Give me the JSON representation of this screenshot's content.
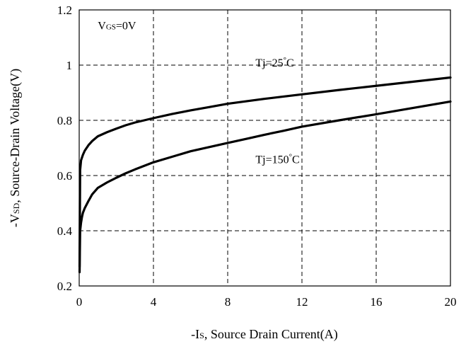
{
  "chart_data": {
    "type": "line",
    "title": "",
    "xlabel_parts": [
      "-I",
      "S",
      ", Source Drain Current(A)"
    ],
    "ylabel_parts": [
      "-V",
      "SD",
      ", Source-Drain Voltage(V)"
    ],
    "xlim": [
      0,
      20
    ],
    "ylim": [
      0.2,
      1.2
    ],
    "x_ticks": [
      0,
      4,
      8,
      12,
      16,
      20
    ],
    "y_ticks": [
      0.2,
      0.4,
      0.6,
      0.8,
      1,
      1.2
    ],
    "y_tick_labels": [
      "0.2",
      "0.4",
      "0.6",
      "0.8",
      "1",
      "1.2"
    ],
    "grid": true,
    "annotations": [
      {
        "id": "vgs",
        "parts": [
          "V",
          "GS",
          "=0V"
        ],
        "x": 1.0,
        "y": 1.13
      },
      {
        "id": "tj25",
        "parts": [
          "Tj=25",
          "°",
          "C"
        ],
        "x": 9.5,
        "y": 0.995
      },
      {
        "id": "tj150",
        "parts": [
          "Tj=150",
          "°",
          "C"
        ],
        "x": 9.5,
        "y": 0.645
      }
    ],
    "series": [
      {
        "label": "Tj=25°C",
        "x": [
          0.02,
          0.05,
          0.1,
          0.15,
          0.2,
          0.3,
          0.5,
          0.7,
          1,
          1.5,
          2,
          2.5,
          3,
          4,
          5,
          6,
          7,
          8,
          9,
          10,
          11,
          12,
          14,
          16,
          18,
          20
        ],
        "y": [
          0.27,
          0.62,
          0.655,
          0.665,
          0.675,
          0.69,
          0.71,
          0.725,
          0.742,
          0.757,
          0.77,
          0.782,
          0.792,
          0.808,
          0.823,
          0.836,
          0.848,
          0.86,
          0.869,
          0.878,
          0.886,
          0.894,
          0.91,
          0.925,
          0.94,
          0.955
        ]
      },
      {
        "label": "Tj=150°C",
        "x": [
          0.02,
          0.05,
          0.1,
          0.15,
          0.2,
          0.3,
          0.5,
          0.7,
          1,
          1.5,
          2,
          2.5,
          3,
          4,
          5,
          6,
          7,
          8,
          9,
          10,
          11,
          12,
          14,
          16,
          18,
          20
        ],
        "y": [
          0.25,
          0.4,
          0.43,
          0.45,
          0.465,
          0.482,
          0.508,
          0.532,
          0.555,
          0.575,
          0.592,
          0.608,
          0.622,
          0.648,
          0.668,
          0.688,
          0.703,
          0.718,
          0.733,
          0.748,
          0.762,
          0.777,
          0.8,
          0.822,
          0.845,
          0.868
        ]
      }
    ]
  }
}
